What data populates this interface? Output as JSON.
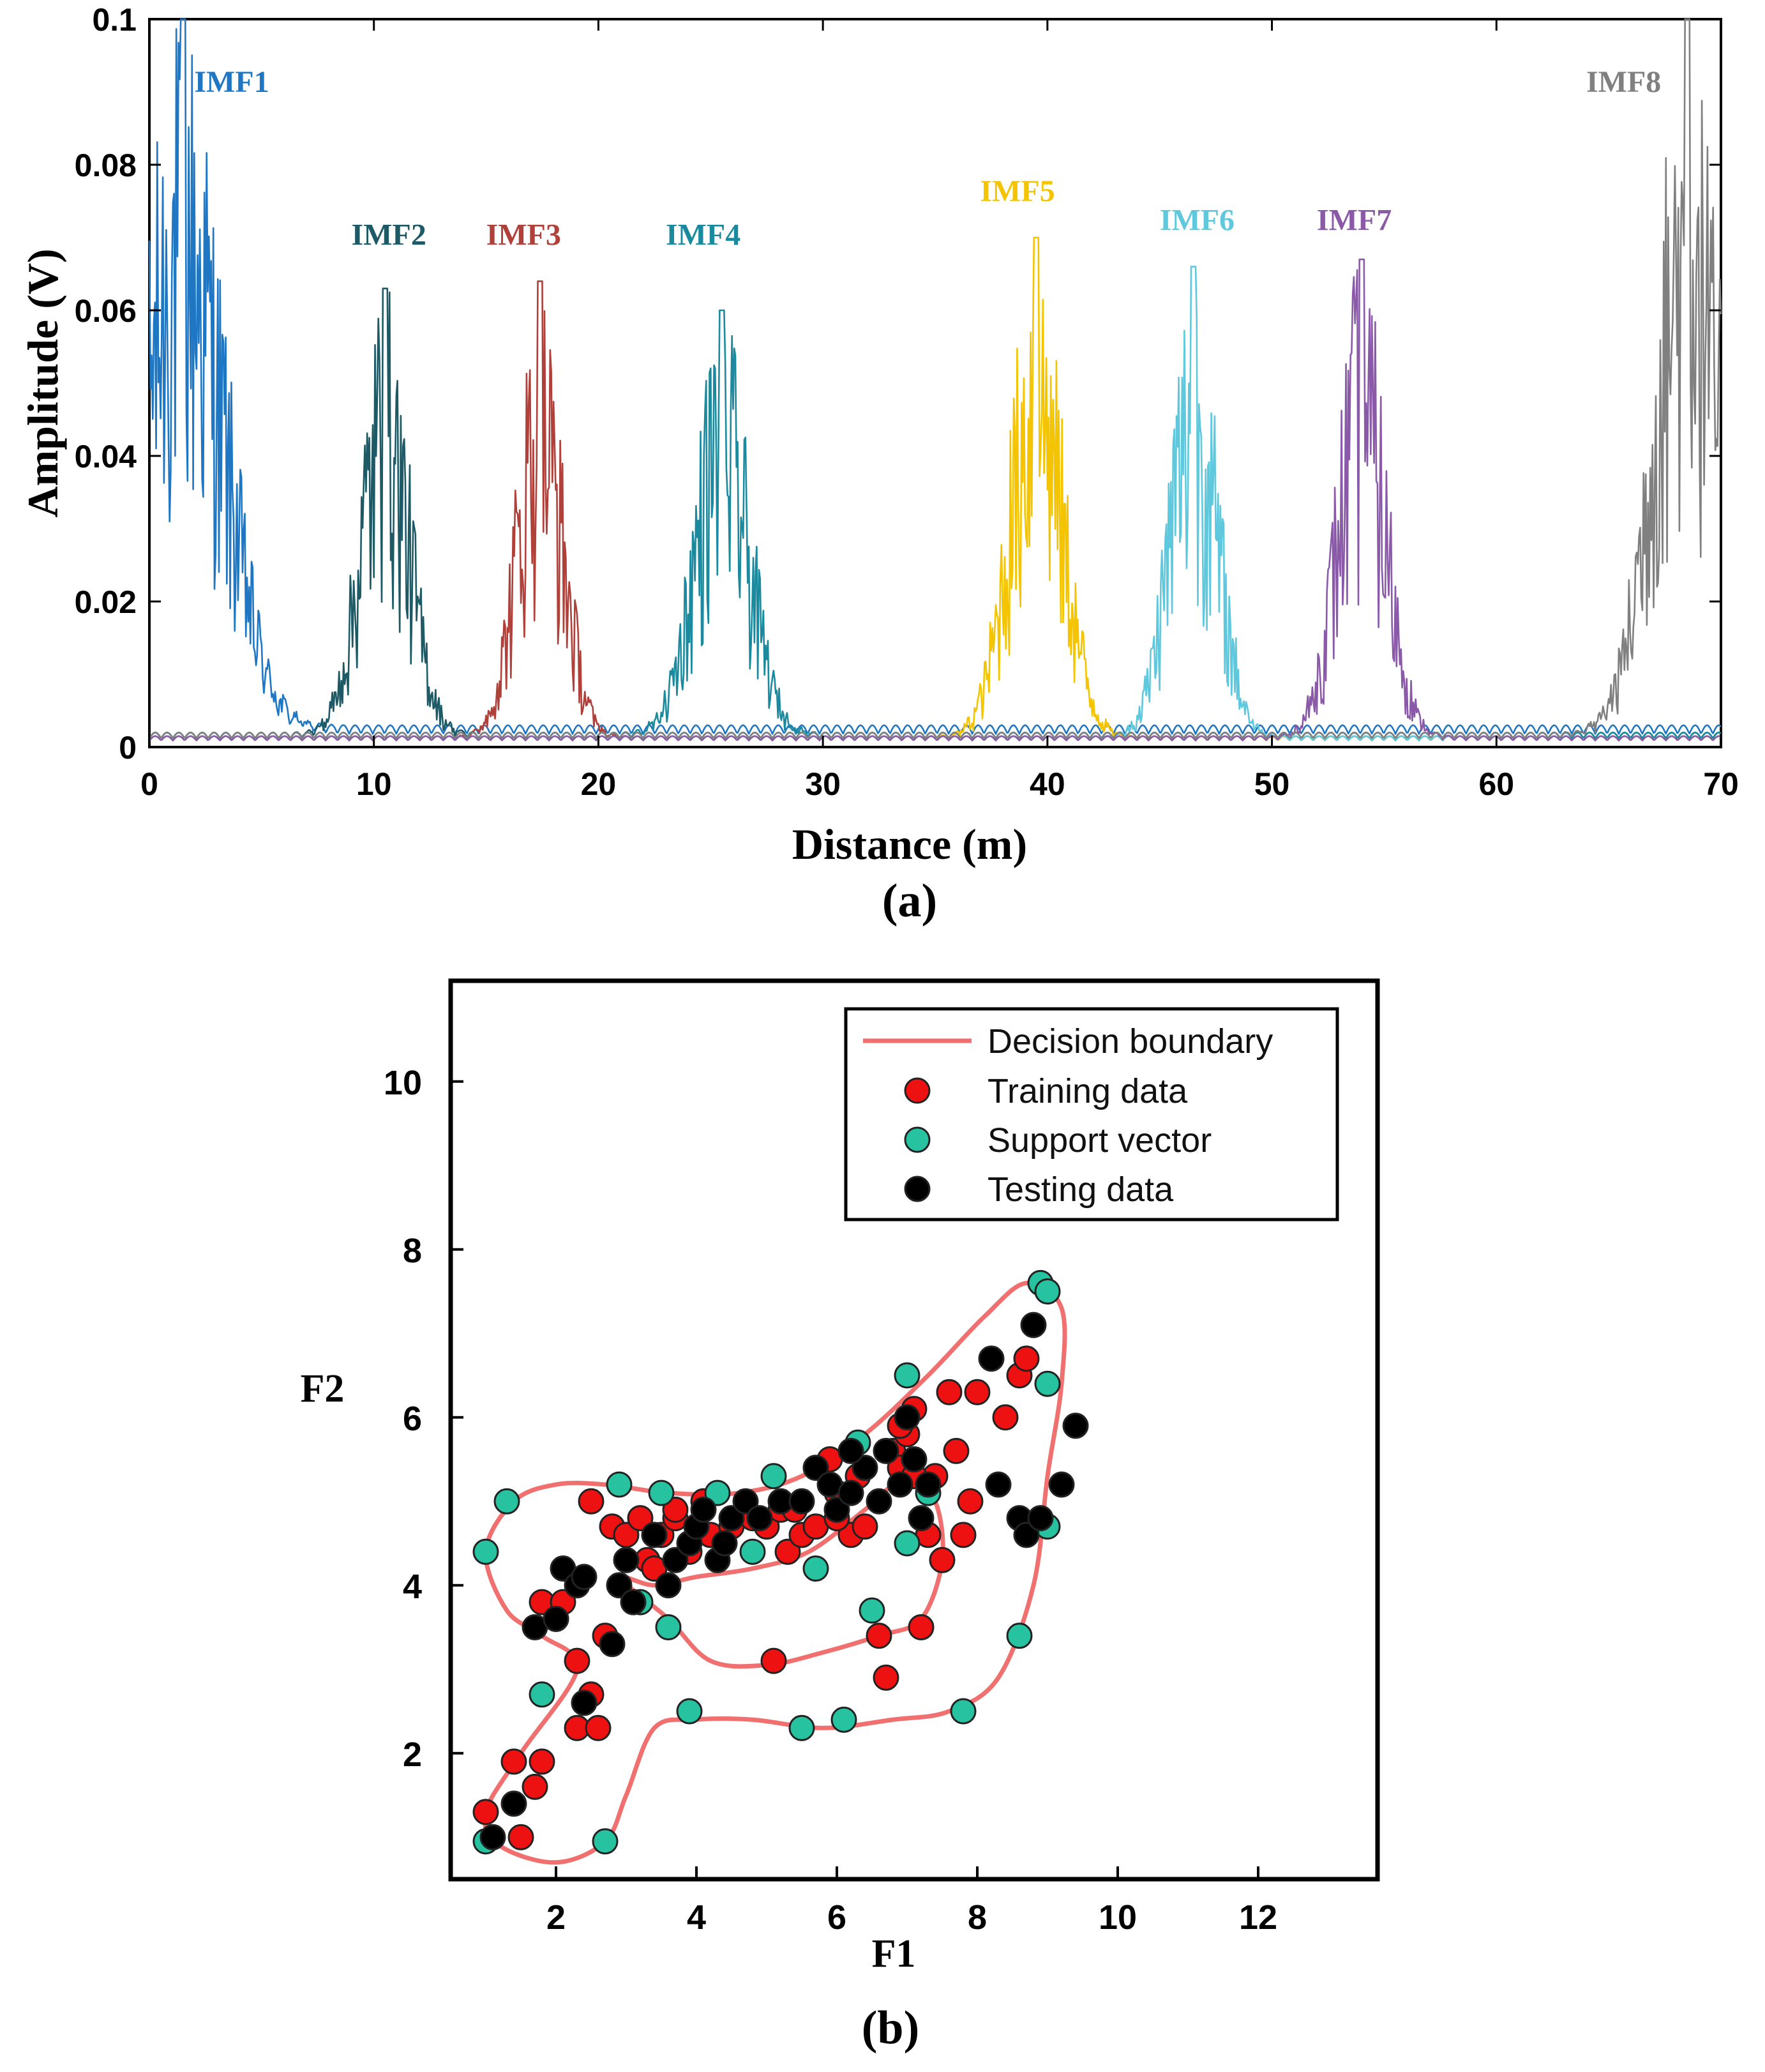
{
  "chart_data": [
    {
      "type": "line",
      "panel_label": "(a)",
      "xlabel": "Distance (m)",
      "ylabel": "Amplitude (V)",
      "xlim": [
        0,
        70
      ],
      "ylim": [
        0,
        0.1
      ],
      "x_ticks": [
        0,
        10,
        20,
        30,
        40,
        50,
        60,
        70
      ],
      "x_tick_labels": [
        "0",
        "10",
        "20",
        "30",
        "40",
        "50",
        "60",
        "70"
      ],
      "y_ticks": [
        0,
        0.02,
        0.04,
        0.06,
        0.08,
        0.1
      ],
      "y_tick_labels": [
        "0",
        "0.02",
        "0.04",
        "0.06",
        "0.08",
        "0.1"
      ],
      "series": [
        {
          "name": "IMF1",
          "color": "#1f77c4",
          "label_pos": [
            2,
            0.09
          ],
          "center": 1.5,
          "width": 3.0,
          "peak": 0.1,
          "floor": 0.003
        },
        {
          "name": "IMF2",
          "color": "#1e5a66",
          "label_pos": [
            9,
            0.069
          ],
          "center": 10.5,
          "width": 1.8,
          "peak": 0.063,
          "floor": 0.002
        },
        {
          "name": "IMF3",
          "color": "#b0403a",
          "label_pos": [
            15,
            0.069
          ],
          "center": 17.4,
          "width": 1.7,
          "peak": 0.064,
          "floor": 0.0015
        },
        {
          "name": "IMF4",
          "color": "#1b8a9e",
          "label_pos": [
            23,
            0.069
          ],
          "center": 25.5,
          "width": 2.0,
          "peak": 0.06,
          "floor": 0.002
        },
        {
          "name": "IMF5",
          "color": "#f5c400",
          "label_pos": [
            37,
            0.075
          ],
          "center": 39.5,
          "width": 2.0,
          "peak": 0.07,
          "floor": 0.0015
        },
        {
          "name": "IMF6",
          "color": "#5fc8dc",
          "label_pos": [
            45,
            0.071
          ],
          "center": 46.5,
          "width": 1.8,
          "peak": 0.066,
          "floor": 0.0015
        },
        {
          "name": "IMF7",
          "color": "#8a5aa8",
          "label_pos": [
            52,
            0.071
          ],
          "center": 54.0,
          "width": 1.8,
          "peak": 0.067,
          "floor": 0.0015
        },
        {
          "name": "IMF8",
          "color": "#808080",
          "label_pos": [
            64,
            0.09
          ],
          "center": 68.5,
          "width": 2.5,
          "peak": 0.1,
          "floor": 0.002
        }
      ]
    },
    {
      "type": "scatter",
      "panel_label": "(b)",
      "xlabel": "F1",
      "ylabel": "F2",
      "xlim": [
        0.5,
        13.7
      ],
      "ylim": [
        0.5,
        11.2
      ],
      "x_ticks": [
        2,
        4,
        6,
        8,
        10,
        12
      ],
      "x_tick_labels": [
        "2",
        "4",
        "6",
        "8",
        "10",
        "12"
      ],
      "y_ticks": [
        2,
        4,
        6,
        8,
        10
      ],
      "y_tick_labels": [
        "2",
        "4",
        "6",
        "8",
        "10"
      ],
      "legend": {
        "position": "top-right",
        "entries": [
          "Decision boundary",
          "Training data",
          "Support vector",
          "Testing data"
        ]
      },
      "colors": {
        "boundary": "#f07070",
        "training": "#ee1111",
        "support": "#27c3a0",
        "testing": "#000000"
      },
      "boundary_outer": [
        [
          1.0,
          4.4
        ],
        [
          1.4,
          5.0
        ],
        [
          2.0,
          5.2
        ],
        [
          2.7,
          5.2
        ],
        [
          3.6,
          5.1
        ],
        [
          4.6,
          5.1
        ],
        [
          5.5,
          5.3
        ],
        [
          6.4,
          5.8
        ],
        [
          7.3,
          6.5
        ],
        [
          8.1,
          7.2
        ],
        [
          8.7,
          7.6
        ],
        [
          9.2,
          7.3
        ],
        [
          9.2,
          6.4
        ],
        [
          9.0,
          5.3
        ],
        [
          8.8,
          4.0
        ],
        [
          8.3,
          2.9
        ],
        [
          7.6,
          2.5
        ],
        [
          6.8,
          2.4
        ],
        [
          5.8,
          2.3
        ],
        [
          4.8,
          2.4
        ],
        [
          4.0,
          2.4
        ],
        [
          3.4,
          2.3
        ],
        [
          3.0,
          1.5
        ],
        [
          2.7,
          0.95
        ],
        [
          2.0,
          0.7
        ],
        [
          1.2,
          0.9
        ],
        [
          1.0,
          1.3
        ],
        [
          1.5,
          2.0
        ],
        [
          2.3,
          3.0
        ],
        [
          1.8,
          3.4
        ],
        [
          1.3,
          3.7
        ],
        [
          1.0,
          4.4
        ]
      ],
      "boundary_inner": [
        [
          2.9,
          4.1
        ],
        [
          3.6,
          3.6
        ],
        [
          4.2,
          3.1
        ],
        [
          5.0,
          3.05
        ],
        [
          5.8,
          3.2
        ],
        [
          6.6,
          3.4
        ],
        [
          7.2,
          3.6
        ],
        [
          7.5,
          4.3
        ],
        [
          7.4,
          5.0
        ],
        [
          7.0,
          5.3
        ],
        [
          6.4,
          4.9
        ],
        [
          5.6,
          4.4
        ],
        [
          4.8,
          4.2
        ],
        [
          4.0,
          4.1
        ],
        [
          3.4,
          4.0
        ],
        [
          2.9,
          4.1
        ]
      ],
      "training": [
        [
          1.0,
          1.3
        ],
        [
          1.4,
          1.9
        ],
        [
          1.8,
          1.9
        ],
        [
          1.7,
          1.6
        ],
        [
          1.5,
          1.0
        ],
        [
          1.8,
          3.8
        ],
        [
          2.0,
          3.6
        ],
        [
          2.1,
          3.8
        ],
        [
          2.3,
          3.1
        ],
        [
          2.5,
          2.7
        ],
        [
          2.3,
          2.3
        ],
        [
          2.6,
          2.3
        ],
        [
          2.5,
          5.0
        ],
        [
          2.7,
          3.4
        ],
        [
          2.8,
          4.7
        ],
        [
          3.0,
          4.6
        ],
        [
          3.2,
          4.8
        ],
        [
          3.3,
          4.3
        ],
        [
          3.4,
          4.2
        ],
        [
          3.5,
          4.6
        ],
        [
          3.7,
          4.8
        ],
        [
          3.9,
          4.4
        ],
        [
          4.2,
          4.6
        ],
        [
          4.5,
          4.7
        ],
        [
          4.8,
          4.8
        ],
        [
          5.0,
          4.7
        ],
        [
          5.2,
          4.9
        ],
        [
          5.3,
          4.4
        ],
        [
          5.5,
          4.6
        ],
        [
          5.7,
          4.7
        ],
        [
          6.0,
          5.1
        ],
        [
          6.2,
          4.6
        ],
        [
          6.4,
          4.7
        ],
        [
          6.6,
          3.4
        ],
        [
          6.7,
          2.9
        ],
        [
          6.8,
          5.6
        ],
        [
          6.9,
          5.4
        ],
        [
          7.0,
          5.8
        ],
        [
          7.1,
          6.1
        ],
        [
          7.2,
          3.5
        ],
        [
          7.3,
          4.6
        ],
        [
          7.4,
          5.3
        ],
        [
          7.5,
          4.3
        ],
        [
          7.6,
          6.3
        ],
        [
          7.7,
          5.6
        ],
        [
          7.9,
          5.0
        ],
        [
          7.8,
          4.6
        ],
        [
          8.0,
          6.3
        ],
        [
          8.4,
          6.0
        ],
        [
          8.6,
          6.5
        ],
        [
          8.7,
          6.7
        ],
        [
          5.1,
          3.1
        ],
        [
          4.1,
          5.0
        ],
        [
          3.7,
          4.9
        ],
        [
          6.3,
          5.3
        ],
        [
          6.9,
          5.9
        ],
        [
          7.1,
          5.3
        ],
        [
          5.9,
          5.5
        ],
        [
          6.0,
          4.8
        ],
        [
          5.4,
          4.9
        ]
      ],
      "support": [
        [
          1.0,
          4.4
        ],
        [
          1.3,
          5.0
        ],
        [
          1.0,
          0.95
        ],
        [
          2.7,
          0.95
        ],
        [
          1.8,
          2.7
        ],
        [
          2.9,
          5.2
        ],
        [
          3.5,
          5.1
        ],
        [
          3.2,
          3.8
        ],
        [
          3.6,
          3.5
        ],
        [
          4.3,
          5.1
        ],
        [
          4.8,
          4.4
        ],
        [
          5.1,
          5.3
        ],
        [
          5.7,
          4.2
        ],
        [
          6.3,
          5.7
        ],
        [
          6.5,
          3.7
        ],
        [
          7.0,
          6.5
        ],
        [
          7.0,
          4.5
        ],
        [
          3.9,
          2.5
        ],
        [
          5.5,
          2.3
        ],
        [
          6.1,
          2.4
        ],
        [
          7.8,
          2.5
        ],
        [
          8.6,
          3.4
        ],
        [
          9.0,
          6.4
        ],
        [
          9.0,
          4.7
        ],
        [
          8.9,
          7.6
        ],
        [
          9.0,
          7.5
        ],
        [
          7.3,
          5.1
        ]
      ],
      "testing": [
        [
          1.1,
          1.0
        ],
        [
          1.4,
          1.4
        ],
        [
          1.7,
          3.5
        ],
        [
          2.0,
          3.6
        ],
        [
          2.1,
          4.2
        ],
        [
          2.3,
          4.0
        ],
        [
          2.4,
          4.1
        ],
        [
          2.8,
          3.3
        ],
        [
          2.9,
          4.0
        ],
        [
          3.0,
          4.3
        ],
        [
          3.1,
          3.8
        ],
        [
          3.4,
          4.6
        ],
        [
          3.6,
          4.0
        ],
        [
          3.7,
          4.3
        ],
        [
          3.9,
          4.5
        ],
        [
          4.0,
          4.7
        ],
        [
          4.1,
          4.9
        ],
        [
          4.3,
          4.3
        ],
        [
          4.5,
          4.8
        ],
        [
          4.7,
          5.0
        ],
        [
          4.9,
          4.8
        ],
        [
          5.2,
          5.0
        ],
        [
          5.5,
          5.0
        ],
        [
          5.7,
          5.4
        ],
        [
          5.9,
          5.2
        ],
        [
          6.0,
          4.9
        ],
        [
          6.2,
          5.1
        ],
        [
          6.4,
          5.4
        ],
        [
          6.6,
          5.0
        ],
        [
          6.7,
          5.6
        ],
        [
          6.9,
          5.2
        ],
        [
          7.0,
          6.0
        ],
        [
          7.1,
          5.5
        ],
        [
          7.2,
          4.8
        ],
        [
          7.3,
          5.2
        ],
        [
          8.2,
          6.7
        ],
        [
          8.3,
          5.2
        ],
        [
          8.6,
          4.8
        ],
        [
          8.7,
          4.6
        ],
        [
          8.8,
          7.1
        ],
        [
          9.2,
          5.2
        ],
        [
          9.4,
          5.9
        ],
        [
          8.9,
          4.8
        ],
        [
          2.4,
          2.6
        ],
        [
          6.2,
          5.6
        ],
        [
          4.4,
          4.5
        ]
      ]
    }
  ]
}
